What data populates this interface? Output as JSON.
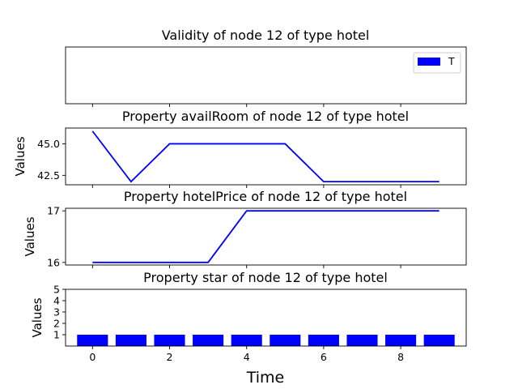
{
  "chart_data": {
    "type": "multi-panel",
    "xlabel": "Time",
    "x": [
      0,
      1,
      2,
      3,
      4,
      5,
      6,
      7,
      8,
      9
    ],
    "xticks": [
      0,
      2,
      4,
      6,
      8
    ],
    "xlim": [
      -0.7,
      9.7
    ],
    "panels": [
      {
        "type": "bar",
        "title": "Validity of node 12 of type hotel",
        "ylabel": "",
        "legend": "T",
        "legend_placement": "top-right",
        "values": [],
        "color": "#0000ff"
      },
      {
        "type": "line",
        "title": "Property availRoom of node 12 of type hotel",
        "ylabel": "Values",
        "values": [
          46,
          42,
          45,
          45,
          45,
          45,
          42,
          42,
          42,
          42
        ],
        "ylim": [
          41.75,
          46.25
        ],
        "yticks": [
          42.5,
          45.0
        ],
        "ytick_labels": [
          "42.5",
          "45.0"
        ],
        "color": "#0000ff"
      },
      {
        "type": "line",
        "title": "Property hotelPrice of node 12 of type hotel",
        "ylabel": "Values",
        "values": [
          16,
          16,
          16,
          16,
          17,
          17,
          17,
          17,
          17,
          17
        ],
        "ylim": [
          15.95,
          17.05
        ],
        "yticks": [
          16,
          17
        ],
        "ytick_labels": [
          "16",
          "17"
        ],
        "color": "#0000ff"
      },
      {
        "type": "bar",
        "title": "Property star of node 12 of type hotel",
        "ylabel": "Values",
        "values": [
          1,
          1,
          1,
          1,
          1,
          1,
          1,
          1,
          1,
          1
        ],
        "ylim": [
          0,
          5
        ],
        "yticks": [
          1,
          2,
          3,
          4,
          5
        ],
        "ytick_labels": [
          "1",
          "2",
          "3",
          "4",
          "5"
        ],
        "color": "#0000ff"
      }
    ]
  }
}
